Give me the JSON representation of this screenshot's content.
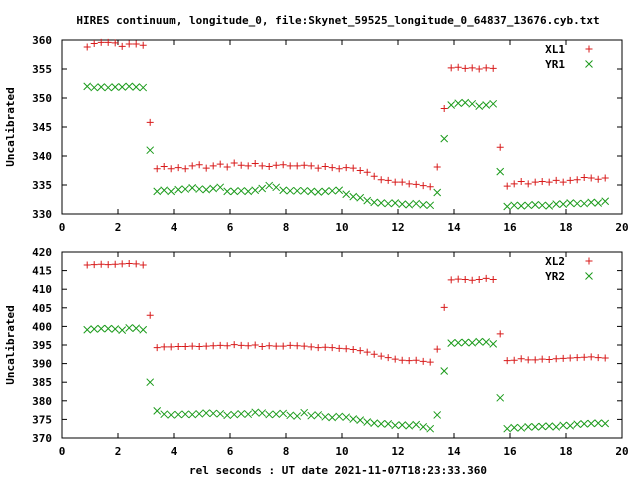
{
  "title": "HIRES continuum, longitude_0, file:Skynet_59525_longitude_0_64837_13676.cyb.txt",
  "xlabel": "rel seconds : UT date 2021-11-07T18:23:33.360",
  "colors": {
    "red": "#d81b1b",
    "green": "#1a9a1a",
    "axis": "#000000"
  },
  "chart_data": [
    {
      "type": "scatter",
      "ylabel": "Uncalibrated",
      "xlim": [
        0,
        20
      ],
      "ylim": [
        330,
        360
      ],
      "xticks": [
        0,
        2,
        4,
        6,
        8,
        10,
        12,
        14,
        16,
        18,
        20
      ],
      "yticks": [
        330,
        335,
        340,
        345,
        350,
        355,
        360
      ],
      "legend_position": "top-right",
      "series": [
        {
          "name": "XL1",
          "marker": "plus",
          "color": "#d81b1b",
          "x": [
            0.9,
            1.15,
            1.4,
            1.65,
            1.9,
            2.15,
            2.4,
            2.65,
            2.9,
            3.15,
            3.4,
            3.65,
            3.9,
            4.15,
            4.4,
            4.65,
            4.9,
            5.15,
            5.4,
            5.65,
            5.9,
            6.15,
            6.4,
            6.65,
            6.9,
            7.15,
            7.4,
            7.65,
            7.9,
            8.15,
            8.4,
            8.65,
            8.9,
            9.15,
            9.4,
            9.65,
            9.9,
            10.15,
            10.4,
            10.65,
            10.9,
            11.15,
            11.4,
            11.65,
            11.9,
            12.15,
            12.4,
            12.65,
            12.9,
            13.15,
            13.4,
            13.65,
            13.9,
            14.15,
            14.4,
            14.65,
            14.9,
            15.15,
            15.4,
            15.65,
            15.9,
            16.15,
            16.4,
            16.65,
            16.9,
            17.15,
            17.4,
            17.65,
            17.9,
            18.15,
            18.4,
            18.65,
            18.9,
            19.15,
            19.4
          ],
          "y": [
            358.8,
            359.4,
            359.6,
            359.6,
            359.5,
            358.9,
            359.3,
            359.3,
            359.1,
            345.8,
            337.8,
            338.2,
            337.8,
            338.0,
            337.8,
            338.3,
            338.5,
            337.9,
            338.3,
            338.6,
            338.1,
            338.8,
            338.4,
            338.3,
            338.7,
            338.3,
            338.2,
            338.4,
            338.5,
            338.3,
            338.3,
            338.4,
            338.3,
            337.9,
            338.2,
            338.0,
            337.8,
            338.0,
            337.9,
            337.5,
            337.2,
            336.5,
            335.9,
            335.8,
            335.5,
            335.5,
            335.2,
            335.1,
            334.9,
            334.7,
            338.1,
            348.2,
            355.2,
            355.3,
            355.1,
            355.2,
            355.0,
            355.2,
            355.1,
            341.5,
            334.8,
            335.2,
            335.6,
            335.2,
            335.5,
            335.6,
            335.5,
            335.8,
            335.5,
            335.8,
            335.9,
            336.3,
            336.2,
            336.0,
            336.2
          ]
        },
        {
          "name": "YR1",
          "marker": "cross",
          "color": "#1a9a1a",
          "x": [
            0.9,
            1.15,
            1.4,
            1.65,
            1.9,
            2.15,
            2.4,
            2.65,
            2.9,
            3.15,
            3.4,
            3.65,
            3.9,
            4.15,
            4.4,
            4.65,
            4.9,
            5.15,
            5.4,
            5.65,
            5.9,
            6.15,
            6.4,
            6.65,
            6.9,
            7.15,
            7.4,
            7.65,
            7.9,
            8.15,
            8.4,
            8.65,
            8.9,
            9.15,
            9.4,
            9.65,
            9.9,
            10.15,
            10.4,
            10.65,
            10.9,
            11.15,
            11.4,
            11.65,
            11.9,
            12.15,
            12.4,
            12.65,
            12.9,
            13.15,
            13.4,
            13.65,
            13.9,
            14.15,
            14.4,
            14.65,
            14.9,
            15.15,
            15.4,
            15.65,
            15.9,
            16.15,
            16.4,
            16.65,
            16.9,
            17.15,
            17.4,
            17.65,
            17.9,
            18.15,
            18.4,
            18.65,
            18.9,
            19.15,
            19.4
          ],
          "y": [
            352.0,
            351.8,
            351.9,
            351.8,
            351.9,
            351.9,
            352.0,
            351.9,
            351.8,
            341.0,
            333.9,
            334.1,
            333.9,
            334.2,
            334.3,
            334.5,
            334.3,
            334.2,
            334.4,
            334.6,
            333.9,
            333.9,
            334.0,
            333.9,
            334.1,
            334.4,
            334.9,
            334.6,
            334.1,
            334.0,
            334.0,
            334.0,
            333.9,
            333.8,
            333.9,
            334.0,
            334.1,
            333.4,
            333.0,
            332.8,
            332.3,
            332.0,
            331.9,
            331.8,
            331.9,
            331.7,
            331.6,
            331.8,
            331.6,
            331.5,
            333.7,
            343.0,
            348.8,
            349.1,
            349.2,
            349.0,
            348.6,
            348.8,
            349.0,
            337.3,
            331.3,
            331.5,
            331.4,
            331.5,
            331.6,
            331.5,
            331.4,
            331.7,
            331.7,
            331.9,
            331.8,
            331.8,
            332.0,
            331.9,
            332.2
          ]
        }
      ]
    },
    {
      "type": "scatter",
      "ylabel": "Uncalibrated",
      "xlim": [
        0,
        20
      ],
      "ylim": [
        370,
        420
      ],
      "xticks": [
        0,
        2,
        4,
        6,
        8,
        10,
        12,
        14,
        16,
        18,
        20
      ],
      "yticks": [
        370,
        375,
        380,
        385,
        390,
        395,
        400,
        405,
        410,
        415,
        420
      ],
      "legend_position": "top-right",
      "series": [
        {
          "name": "XL2",
          "marker": "plus",
          "color": "#d81b1b",
          "x": [
            0.9,
            1.15,
            1.4,
            1.65,
            1.9,
            2.15,
            2.4,
            2.65,
            2.9,
            3.15,
            3.4,
            3.65,
            3.9,
            4.15,
            4.4,
            4.65,
            4.9,
            5.15,
            5.4,
            5.65,
            5.9,
            6.15,
            6.4,
            6.65,
            6.9,
            7.15,
            7.4,
            7.65,
            7.9,
            8.15,
            8.4,
            8.65,
            8.9,
            9.15,
            9.4,
            9.65,
            9.9,
            10.15,
            10.4,
            10.65,
            10.9,
            11.15,
            11.4,
            11.65,
            11.9,
            12.15,
            12.4,
            12.65,
            12.9,
            13.15,
            13.4,
            13.65,
            13.9,
            14.15,
            14.4,
            14.65,
            14.9,
            15.15,
            15.4,
            15.65,
            15.9,
            16.15,
            16.4,
            16.65,
            16.9,
            17.15,
            17.4,
            17.65,
            17.9,
            18.15,
            18.4,
            18.65,
            18.9,
            19.15,
            19.4
          ],
          "y": [
            416.5,
            416.6,
            416.7,
            416.6,
            416.7,
            416.8,
            416.9,
            416.8,
            416.5,
            403.0,
            394.3,
            394.5,
            394.5,
            394.6,
            394.6,
            394.7,
            394.6,
            394.7,
            394.8,
            394.9,
            394.8,
            395.1,
            394.9,
            394.8,
            395.0,
            394.6,
            394.8,
            394.7,
            394.7,
            394.9,
            394.8,
            394.7,
            394.5,
            394.3,
            394.4,
            394.3,
            394.1,
            394.0,
            393.8,
            393.5,
            393.1,
            392.5,
            392.0,
            391.6,
            391.2,
            390.9,
            390.8,
            390.9,
            390.6,
            390.4,
            393.9,
            405.1,
            412.5,
            412.7,
            412.6,
            412.4,
            412.6,
            412.9,
            412.6,
            398.0,
            390.8,
            390.9,
            391.3,
            391.0,
            391.0,
            391.2,
            391.1,
            391.3,
            391.4,
            391.5,
            391.6,
            391.7,
            391.8,
            391.6,
            391.5
          ]
        },
        {
          "name": "YR2",
          "marker": "cross",
          "color": "#1a9a1a",
          "x": [
            0.9,
            1.15,
            1.4,
            1.65,
            1.9,
            2.15,
            2.4,
            2.65,
            2.9,
            3.15,
            3.4,
            3.65,
            3.9,
            4.15,
            4.4,
            4.65,
            4.9,
            5.15,
            5.4,
            5.65,
            5.9,
            6.15,
            6.4,
            6.65,
            6.9,
            7.15,
            7.4,
            7.65,
            7.9,
            8.15,
            8.4,
            8.65,
            8.9,
            9.15,
            9.4,
            9.65,
            9.9,
            10.15,
            10.4,
            10.65,
            10.9,
            11.15,
            11.4,
            11.65,
            11.9,
            12.15,
            12.4,
            12.65,
            12.9,
            13.15,
            13.4,
            13.65,
            13.9,
            14.15,
            14.4,
            14.65,
            14.9,
            15.15,
            15.4,
            15.65,
            15.9,
            16.15,
            16.4,
            16.65,
            16.9,
            17.15,
            17.4,
            17.65,
            17.9,
            18.15,
            18.4,
            18.65,
            18.9,
            19.15,
            19.4
          ],
          "y": [
            399.1,
            399.3,
            399.4,
            399.4,
            399.3,
            399.0,
            399.6,
            399.5,
            399.1,
            385.0,
            377.3,
            376.4,
            376.2,
            376.3,
            376.4,
            376.3,
            376.5,
            376.7,
            376.6,
            376.5,
            376.1,
            376.3,
            376.5,
            376.4,
            376.9,
            376.7,
            376.3,
            376.4,
            376.6,
            376.1,
            375.9,
            376.8,
            376.0,
            376.2,
            375.7,
            375.5,
            375.8,
            375.6,
            375.1,
            374.8,
            374.3,
            374.0,
            373.8,
            373.8,
            373.4,
            373.5,
            373.3,
            373.6,
            373.0,
            372.5,
            376.2,
            388.0,
            395.5,
            395.6,
            395.7,
            395.6,
            395.9,
            395.8,
            395.3,
            380.8,
            372.5,
            372.8,
            372.7,
            373.0,
            373.0,
            373.1,
            373.2,
            373.0,
            373.4,
            373.3,
            373.7,
            373.8,
            373.9,
            374.0,
            373.9
          ]
        }
      ]
    }
  ]
}
